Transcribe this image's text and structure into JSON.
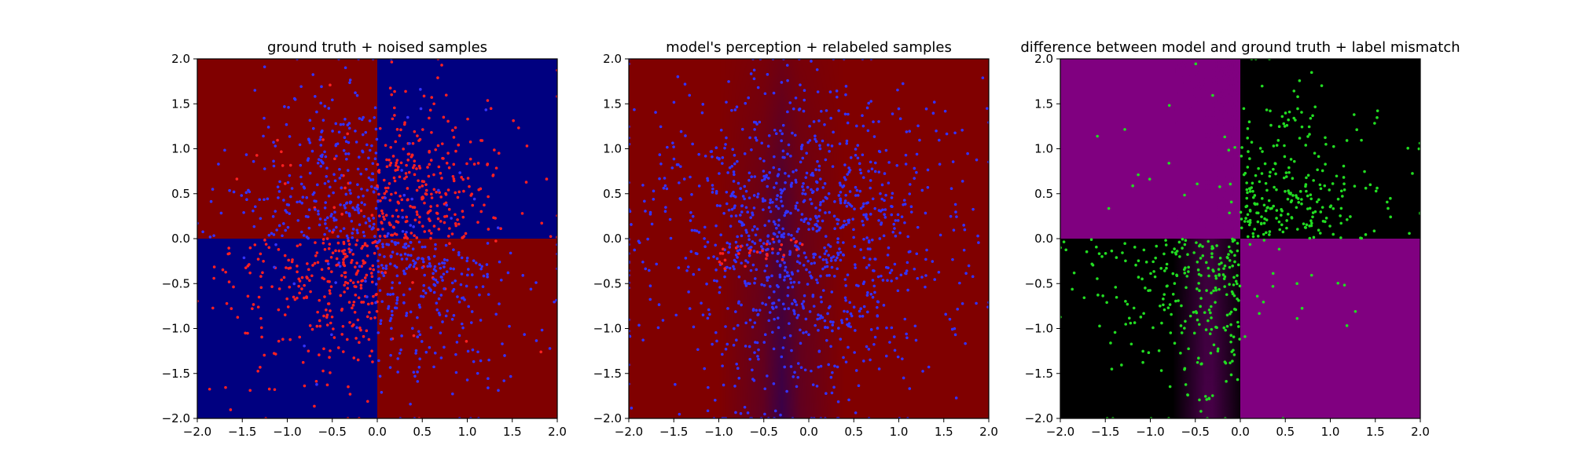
{
  "chart_data": [
    {
      "type": "scatter",
      "title": "ground truth + noised samples",
      "xlim": [
        -2.0,
        2.0
      ],
      "ylim": [
        -2.0,
        2.0
      ],
      "xticks": [
        "−2.0",
        "−1.5",
        "−1.0",
        "−0.5",
        "0.0",
        "0.5",
        "1.0",
        "1.5",
        "2.0"
      ],
      "yticks": [
        "−2.0",
        "−1.5",
        "−1.0",
        "−0.5",
        "0.0",
        "0.5",
        "1.0",
        "1.5",
        "2.0"
      ],
      "background": "quadrant sign map: red where x*y < 0, navy where x*y > 0",
      "series": [
        {
          "color": "#ff2020",
          "point_count": 600,
          "region": "concentrated where x*y > 0"
        },
        {
          "color": "#3333ff",
          "point_count": 600,
          "region": "concentrated where x*y < 0"
        }
      ],
      "colors": {
        "positive_region": "#000080",
        "negative_region": "#800000"
      }
    },
    {
      "type": "scatter",
      "title": "model's perception + relabeled samples",
      "xlim": [
        -2.0,
        2.0
      ],
      "ylim": [
        -2.0,
        2.0
      ],
      "xticks": [
        "−2.0",
        "−1.5",
        "−1.0",
        "−0.5",
        "0.0",
        "0.5",
        "1.0",
        "1.5",
        "2.0"
      ],
      "yticks": [
        "−2.0",
        "−1.5",
        "−1.0",
        "−0.5",
        "0.0",
        "0.5",
        "1.0",
        "1.5",
        "2.0"
      ],
      "background": "mostly dark red, with a blurred navy vertical band centered near x = -0.3",
      "series": [
        {
          "color": "#3333ff",
          "point_count": 1150,
          "region": "everywhere"
        },
        {
          "color": "#ff2020",
          "point_count": 30,
          "region": "near y = -0.1 to -0.3, x = -1.0 to 0.0"
        }
      ],
      "colors": {
        "field": "#800000",
        "band": "#000080"
      }
    },
    {
      "type": "scatter",
      "title": "difference between model and ground truth + label mismatch",
      "xlim": [
        -2.0,
        2.0
      ],
      "ylim": [
        -2.0,
        2.0
      ],
      "xticks": [
        "−2.0",
        "−1.5",
        "−1.0",
        "−0.5",
        "0.0",
        "0.5",
        "1.0",
        "1.5",
        "2.0"
      ],
      "yticks": [
        "−2.0",
        "−1.5",
        "−1.0",
        "−0.5",
        "0.0",
        "0.5",
        "1.0",
        "1.5",
        "2.0"
      ],
      "background": "purple in top-left and bottom-right quadrants, black in top-right and bottom-left with a purple blur near x = -0.3 in the lower half",
      "series": [
        {
          "color": "#22dd22",
          "point_count": 560,
          "region": "where x*y > 0"
        }
      ],
      "colors": {
        "mismatch": "#800080",
        "match": "#000000"
      }
    }
  ]
}
